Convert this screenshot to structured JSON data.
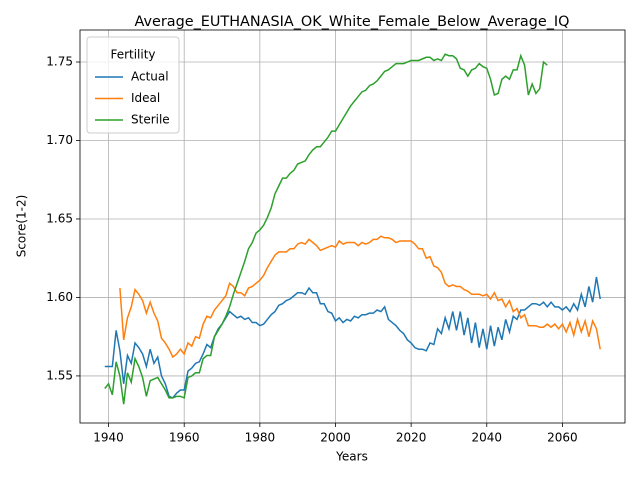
{
  "chart_data": {
    "type": "line",
    "title": "Average_EUTHANASIA_OK_White_Female_Below_Average_IQ",
    "x_label": "Years",
    "y_label": "Score(1-2)",
    "legend_title": "Fertility",
    "legend_loc": "upper left",
    "grid": true,
    "xlim": [
      1932.45,
      2076.55
    ],
    "ylim": [
      1.52,
      1.7704
    ],
    "xticks": [
      1940,
      1960,
      1980,
      2000,
      2020,
      2040,
      2060
    ],
    "yticks": [
      1.55,
      {
        "value": 1.6,
        "label": "1.60"
      },
      1.65,
      {
        "value": 1.7,
        "label": "1.70"
      },
      1.75
    ],
    "x": [
      1939,
      1940,
      1941,
      1942,
      1943,
      1944,
      1945,
      1946,
      1947,
      1948,
      1949,
      1950,
      1951,
      1952,
      1953,
      1954,
      1955,
      1956,
      1957,
      1958,
      1959,
      1960,
      1961,
      1962,
      1963,
      1964,
      1965,
      1966,
      1967,
      1968,
      1969,
      1970,
      1971,
      1972,
      1973,
      1974,
      1975,
      1976,
      1977,
      1978,
      1979,
      1980,
      1981,
      1982,
      1983,
      1984,
      1985,
      1986,
      1987,
      1988,
      1989,
      1990,
      1991,
      1992,
      1993,
      1994,
      1995,
      1996,
      1997,
      1998,
      1999,
      2000,
      2001,
      2002,
      2003,
      2004,
      2005,
      2006,
      2007,
      2008,
      2009,
      2010,
      2011,
      2012,
      2013,
      2014,
      2015,
      2016,
      2017,
      2018,
      2019,
      2020,
      2021,
      2022,
      2023,
      2024,
      2025,
      2026,
      2027,
      2028,
      2029,
      2030,
      2031,
      2032,
      2033,
      2034,
      2035,
      2036,
      2037,
      2038,
      2039,
      2040,
      2041,
      2042,
      2043,
      2044,
      2045,
      2046,
      2047,
      2048,
      2049,
      2050,
      2051,
      2052,
      2053,
      2054,
      2055,
      2056,
      2057,
      2058,
      2059,
      2060,
      2061,
      2062,
      2063,
      2064,
      2065,
      2066,
      2067,
      2068,
      2069,
      2070
    ],
    "series": [
      {
        "name": "Actual",
        "color": "#1f77b4",
        "values": [
          1.556,
          1.556,
          1.556,
          1.579,
          1.566,
          1.545,
          1.563,
          1.558,
          1.571,
          1.568,
          1.564,
          1.556,
          1.567,
          1.558,
          1.562,
          1.55,
          1.545,
          1.537,
          1.536,
          1.539,
          1.541,
          1.541,
          1.553,
          1.555,
          1.558,
          1.559,
          1.564,
          1.57,
          1.568,
          1.575,
          1.58,
          1.583,
          1.587,
          1.591,
          1.589,
          1.587,
          1.588,
          1.586,
          1.587,
          1.584,
          1.584,
          1.582,
          1.583,
          1.586,
          1.589,
          1.591,
          1.595,
          1.596,
          1.598,
          1.599,
          1.601,
          1.603,
          1.603,
          1.602,
          1.606,
          1.603,
          1.603,
          1.596,
          1.596,
          1.591,
          1.59,
          1.585,
          1.587,
          1.584,
          1.586,
          1.585,
          1.588,
          1.587,
          1.589,
          1.589,
          1.59,
          1.59,
          1.592,
          1.591,
          1.594,
          1.586,
          1.584,
          1.582,
          1.579,
          1.577,
          1.573,
          1.571,
          1.568,
          1.567,
          1.567,
          1.566,
          1.571,
          1.57,
          1.58,
          1.577,
          1.587,
          1.58,
          1.591,
          1.579,
          1.591,
          1.576,
          1.587,
          1.571,
          1.584,
          1.568,
          1.58,
          1.567,
          1.582,
          1.569,
          1.581,
          1.573,
          1.586,
          1.578,
          1.588,
          1.586,
          1.592,
          1.592,
          1.594,
          1.596,
          1.596,
          1.595,
          1.597,
          1.594,
          1.597,
          1.594,
          1.594,
          1.592,
          1.594,
          1.591,
          1.596,
          1.592,
          1.602,
          1.594,
          1.607,
          1.597,
          1.613,
          1.599
        ]
      },
      {
        "name": "Ideal",
        "color": "#ff7f0e",
        "values": [
          null,
          null,
          null,
          null,
          1.606,
          1.573,
          1.587,
          1.594,
          1.605,
          1.602,
          1.598,
          1.59,
          1.597,
          1.59,
          1.585,
          1.574,
          1.571,
          1.567,
          1.562,
          1.564,
          1.567,
          1.564,
          1.571,
          1.569,
          1.575,
          1.574,
          1.583,
          1.588,
          1.587,
          1.592,
          1.595,
          1.598,
          1.601,
          1.609,
          1.607,
          1.603,
          1.603,
          1.601,
          1.606,
          1.607,
          1.609,
          1.611,
          1.614,
          1.619,
          1.623,
          1.627,
          1.629,
          1.629,
          1.629,
          1.631,
          1.631,
          1.634,
          1.635,
          1.634,
          1.637,
          1.635,
          1.633,
          1.63,
          1.631,
          1.632,
          1.633,
          1.632,
          1.636,
          1.634,
          1.635,
          1.635,
          1.635,
          1.633,
          1.635,
          1.634,
          1.635,
          1.637,
          1.637,
          1.639,
          1.638,
          1.638,
          1.637,
          1.635,
          1.636,
          1.636,
          1.636,
          1.636,
          1.634,
          1.631,
          1.631,
          1.625,
          1.626,
          1.62,
          1.619,
          1.616,
          1.609,
          1.607,
          1.608,
          1.607,
          1.607,
          1.605,
          1.604,
          1.602,
          1.602,
          1.602,
          1.601,
          1.602,
          1.599,
          1.603,
          1.598,
          1.599,
          1.594,
          1.598,
          1.591,
          1.593,
          1.587,
          1.589,
          1.582,
          1.582,
          1.582,
          1.581,
          1.581,
          1.583,
          1.581,
          1.583,
          1.58,
          1.583,
          1.578,
          1.584,
          1.576,
          1.586,
          1.578,
          1.585,
          1.575,
          1.585,
          1.58,
          1.567
        ]
      },
      {
        "name": "Sterile",
        "color": "#2ca02c",
        "values": [
          1.542,
          1.545,
          1.538,
          1.559,
          1.55,
          1.532,
          1.552,
          1.546,
          1.561,
          1.556,
          1.549,
          1.537,
          1.547,
          1.548,
          1.549,
          1.545,
          1.541,
          1.536,
          1.536,
          1.537,
          1.537,
          1.536,
          1.549,
          1.55,
          1.552,
          1.552,
          1.561,
          1.563,
          1.563,
          1.575,
          1.579,
          1.583,
          1.588,
          1.594,
          1.602,
          1.609,
          1.616,
          1.623,
          1.631,
          1.635,
          1.641,
          1.643,
          1.646,
          1.651,
          1.657,
          1.666,
          1.671,
          1.676,
          1.676,
          1.679,
          1.681,
          1.685,
          1.686,
          1.687,
          1.691,
          1.694,
          1.696,
          1.696,
          1.699,
          1.702,
          1.706,
          1.706,
          1.71,
          1.714,
          1.718,
          1.722,
          1.725,
          1.728,
          1.731,
          1.732,
          1.735,
          1.736,
          1.738,
          1.741,
          1.744,
          1.745,
          1.747,
          1.749,
          1.749,
          1.749,
          1.75,
          1.751,
          1.751,
          1.751,
          1.752,
          1.753,
          1.753,
          1.751,
          1.752,
          1.751,
          1.755,
          1.754,
          1.754,
          1.752,
          1.746,
          1.745,
          1.741,
          1.745,
          1.746,
          1.749,
          1.747,
          1.746,
          1.739,
          1.729,
          1.73,
          1.739,
          1.741,
          1.739,
          1.745,
          1.745,
          1.754,
          1.748,
          1.729,
          1.736,
          1.73,
          1.733,
          1.75,
          1.748,
          null,
          null,
          null,
          null,
          null,
          null,
          null,
          null,
          null,
          null,
          null,
          null,
          null,
          null
        ]
      }
    ]
  }
}
